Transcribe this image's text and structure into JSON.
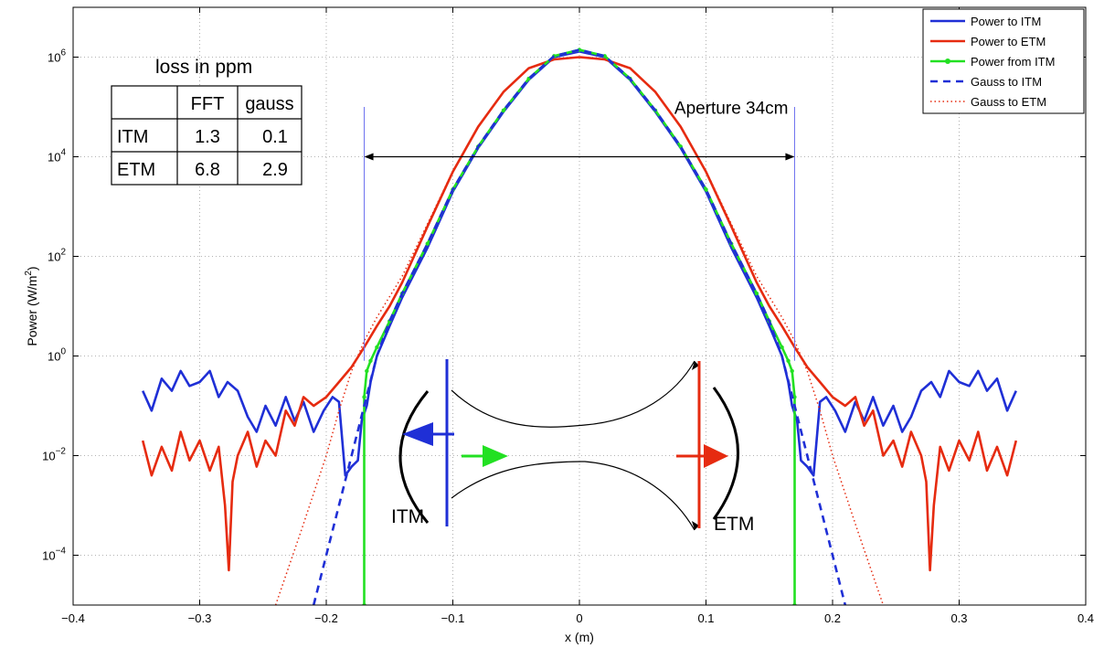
{
  "chart_data": {
    "type": "line",
    "title": "",
    "xlabel": "x (m)",
    "ylabel": "Power (W/m²)",
    "ylabel_main": "Power (W/m",
    "ylabel_sup": "2",
    "ylabel_close": ")",
    "xlim": [
      -0.4,
      0.4
    ],
    "ylim": [
      1e-05,
      10000000
    ],
    "yscale": "log",
    "grid": true,
    "legend_position": "top-right",
    "x_ticks": [
      {
        "value": -0.4,
        "label": "−0.4"
      },
      {
        "value": -0.3,
        "label": "−0.3"
      },
      {
        "value": -0.2,
        "label": "−0.2"
      },
      {
        "value": -0.1,
        "label": "−0.1"
      },
      {
        "value": 0,
        "label": "0"
      },
      {
        "value": 0.1,
        "label": "0.1"
      },
      {
        "value": 0.2,
        "label": "0.2"
      },
      {
        "value": 0.3,
        "label": "0.3"
      },
      {
        "value": 0.4,
        "label": "0.4"
      }
    ],
    "y_ticks": [
      {
        "exp": -4,
        "base": "10",
        "sup": "−4"
      },
      {
        "exp": -2,
        "base": "10",
        "sup": "−2"
      },
      {
        "exp": 0,
        "base": "10",
        "sup": "0"
      },
      {
        "exp": 2,
        "base": "10",
        "sup": "2"
      },
      {
        "exp": 4,
        "base": "10",
        "sup": "4"
      },
      {
        "exp": 6,
        "base": "10",
        "sup": "6"
      }
    ],
    "series": [
      {
        "name": "Power to ITM",
        "color": "#1f2fd6",
        "style": "solid",
        "x": [
          -0.345,
          -0.338,
          -0.33,
          -0.322,
          -0.315,
          -0.308,
          -0.3,
          -0.292,
          -0.285,
          -0.278,
          -0.27,
          -0.262,
          -0.255,
          -0.248,
          -0.24,
          -0.232,
          -0.225,
          -0.218,
          -0.21,
          -0.202,
          -0.195,
          -0.19,
          -0.185,
          -0.18,
          -0.175,
          -0.172,
          -0.168,
          -0.165,
          -0.16,
          -0.15,
          -0.14,
          -0.12,
          -0.1,
          -0.08,
          -0.06,
          -0.04,
          -0.02,
          0.0,
          0.02,
          0.04,
          0.06,
          0.08,
          0.1,
          0.12,
          0.14,
          0.15,
          0.16,
          0.165,
          0.168,
          0.172,
          0.175,
          0.18,
          0.185,
          0.19,
          0.195,
          0.202,
          0.21,
          0.218,
          0.225,
          0.232,
          0.24,
          0.248,
          0.255,
          0.262,
          0.27,
          0.278,
          0.285,
          0.292,
          0.3,
          0.308,
          0.315,
          0.322,
          0.33,
          0.338,
          0.345
        ],
        "y": [
          0.2,
          0.08,
          0.35,
          0.2,
          0.5,
          0.25,
          0.3,
          0.5,
          0.15,
          0.3,
          0.2,
          0.06,
          0.03,
          0.1,
          0.04,
          0.15,
          0.05,
          0.12,
          0.03,
          0.08,
          0.15,
          0.12,
          0.004,
          0.006,
          0.008,
          0.05,
          0.1,
          0.3,
          1.0,
          4.0,
          15.0,
          150.0,
          2000.0,
          15000.0,
          80000.0,
          350000.0,
          1000000.0,
          1300000.0,
          1000000.0,
          350000.0,
          80000.0,
          15000.0,
          2000.0,
          150.0,
          15.0,
          4.0,
          1.0,
          0.3,
          0.1,
          0.05,
          0.008,
          0.006,
          0.004,
          0.12,
          0.15,
          0.08,
          0.03,
          0.12,
          0.05,
          0.15,
          0.04,
          0.1,
          0.03,
          0.06,
          0.2,
          0.3,
          0.15,
          0.5,
          0.3,
          0.25,
          0.5,
          0.2,
          0.35,
          0.08,
          0.2
        ]
      },
      {
        "name": "Power to ETM",
        "color": "#e62b10",
        "style": "solid",
        "x": [
          -0.345,
          -0.338,
          -0.33,
          -0.322,
          -0.315,
          -0.308,
          -0.3,
          -0.292,
          -0.285,
          -0.28,
          -0.277,
          -0.274,
          -0.27,
          -0.262,
          -0.255,
          -0.248,
          -0.24,
          -0.232,
          -0.225,
          -0.218,
          -0.21,
          -0.2,
          -0.19,
          -0.18,
          -0.17,
          -0.16,
          -0.15,
          -0.14,
          -0.12,
          -0.1,
          -0.08,
          -0.06,
          -0.04,
          -0.02,
          0.0,
          0.02,
          0.04,
          0.06,
          0.08,
          0.1,
          0.12,
          0.14,
          0.15,
          0.16,
          0.17,
          0.18,
          0.19,
          0.2,
          0.21,
          0.218,
          0.225,
          0.232,
          0.24,
          0.248,
          0.255,
          0.262,
          0.27,
          0.274,
          0.277,
          0.28,
          0.285,
          0.292,
          0.3,
          0.308,
          0.315,
          0.322,
          0.33,
          0.338,
          0.345
        ],
        "y": [
          0.02,
          0.004,
          0.015,
          0.005,
          0.03,
          0.008,
          0.02,
          0.005,
          0.015,
          0.001,
          5e-05,
          0.003,
          0.01,
          0.03,
          0.006,
          0.02,
          0.01,
          0.08,
          0.04,
          0.15,
          0.1,
          0.15,
          0.3,
          0.6,
          1.5,
          4.0,
          10.0,
          30.0,
          400.0,
          5000.0,
          40000.0,
          200000.0,
          600000.0,
          900000.0,
          1000000.0,
          900000.0,
          600000.0,
          200000.0,
          40000.0,
          5000.0,
          400.0,
          30.0,
          10.0,
          4.0,
          1.5,
          0.6,
          0.3,
          0.15,
          0.1,
          0.15,
          0.04,
          0.08,
          0.01,
          0.02,
          0.006,
          0.03,
          0.01,
          0.003,
          5e-05,
          0.001,
          0.015,
          0.005,
          0.02,
          0.008,
          0.03,
          0.005,
          0.015,
          0.004,
          0.02
        ]
      },
      {
        "name": "Power from ITM",
        "color": "#22e022",
        "style": "solid-dot",
        "x": [
          -0.17,
          -0.17,
          -0.168,
          -0.165,
          -0.16,
          -0.15,
          -0.14,
          -0.12,
          -0.1,
          -0.08,
          -0.06,
          -0.04,
          -0.02,
          0.0,
          0.02,
          0.04,
          0.06,
          0.08,
          0.1,
          0.12,
          0.14,
          0.15,
          0.16,
          0.165,
          0.168,
          0.17,
          0.17
        ],
        "y": [
          1e-05,
          0.15,
          0.5,
          0.8,
          1.5,
          5.0,
          18.0,
          180.0,
          2200.0,
          16000.0,
          85000.0,
          370000.0,
          1050000.0,
          1400000.0,
          1050000.0,
          370000.0,
          85000.0,
          16000.0,
          2200.0,
          180.0,
          18.0,
          5.0,
          1.5,
          0.8,
          0.5,
          0.15,
          1e-05
        ]
      },
      {
        "name": "Gauss to ITM",
        "color": "#1f2fd6",
        "style": "dashed",
        "x": [
          -0.21,
          -0.2,
          -0.19,
          -0.18,
          -0.17,
          -0.16,
          -0.15,
          -0.14,
          -0.12,
          -0.1,
          -0.08,
          -0.06,
          -0.04,
          -0.02,
          0.0,
          0.02,
          0.04,
          0.06,
          0.08,
          0.1,
          0.12,
          0.14,
          0.15,
          0.16,
          0.17,
          0.18,
          0.19,
          0.2,
          0.21
        ],
        "y": [
          1e-05,
          0.0001,
          0.001,
          0.01,
          0.1,
          1.0,
          5.0,
          18.0,
          180.0,
          2200.0,
          16000.0,
          85000.0,
          370000.0,
          1050000.0,
          1400000.0,
          1050000.0,
          370000.0,
          85000.0,
          16000.0,
          2200.0,
          180.0,
          18.0,
          5.0,
          1.0,
          0.1,
          0.01,
          0.001,
          0.0001,
          1e-05
        ]
      },
      {
        "name": "Gauss to ETM",
        "color": "#e62b10",
        "style": "dotted",
        "x": [
          -0.24,
          -0.22,
          -0.2,
          -0.19,
          -0.18,
          -0.17,
          -0.16,
          -0.14,
          -0.12,
          -0.1,
          -0.08,
          -0.06,
          -0.04,
          -0.02,
          0.0,
          0.02,
          0.04,
          0.06,
          0.08,
          0.1,
          0.12,
          0.14,
          0.16,
          0.17,
          0.18,
          0.19,
          0.2,
          0.22,
          0.24
        ],
        "y": [
          1e-05,
          0.0003,
          0.01,
          0.08,
          0.5,
          2.0,
          6.0,
          40.0,
          450.0,
          5200.0,
          40000.0,
          200000.0,
          600000.0,
          900000.0,
          1000000.0,
          900000.0,
          600000.0,
          200000.0,
          40000.0,
          5200.0,
          450.0,
          40.0,
          6.0,
          2.0,
          0.5,
          0.08,
          0.01,
          0.0003,
          1e-05
        ]
      }
    ],
    "annotations": {
      "aperture_label": "Aperture 34cm",
      "aperture_x": [
        -0.17,
        0.17
      ],
      "aperture_arrow_y": 10000,
      "aperture_lines_y": [
        0.8,
        100000
      ],
      "loss_title": "loss in ppm",
      "loss_table": {
        "headers": [
          "",
          "FFT",
          "gauss"
        ],
        "rows": [
          {
            "label": "ITM",
            "fft": "1.3",
            "gauss": "0.1",
            "color": "#1f2fd6"
          },
          {
            "label": "ETM",
            "fft": "6.8",
            "gauss": "2.9",
            "color": "#e62b10"
          }
        ]
      },
      "cavity": {
        "itm_label": "ITM",
        "etm_label": "ETM"
      }
    }
  }
}
